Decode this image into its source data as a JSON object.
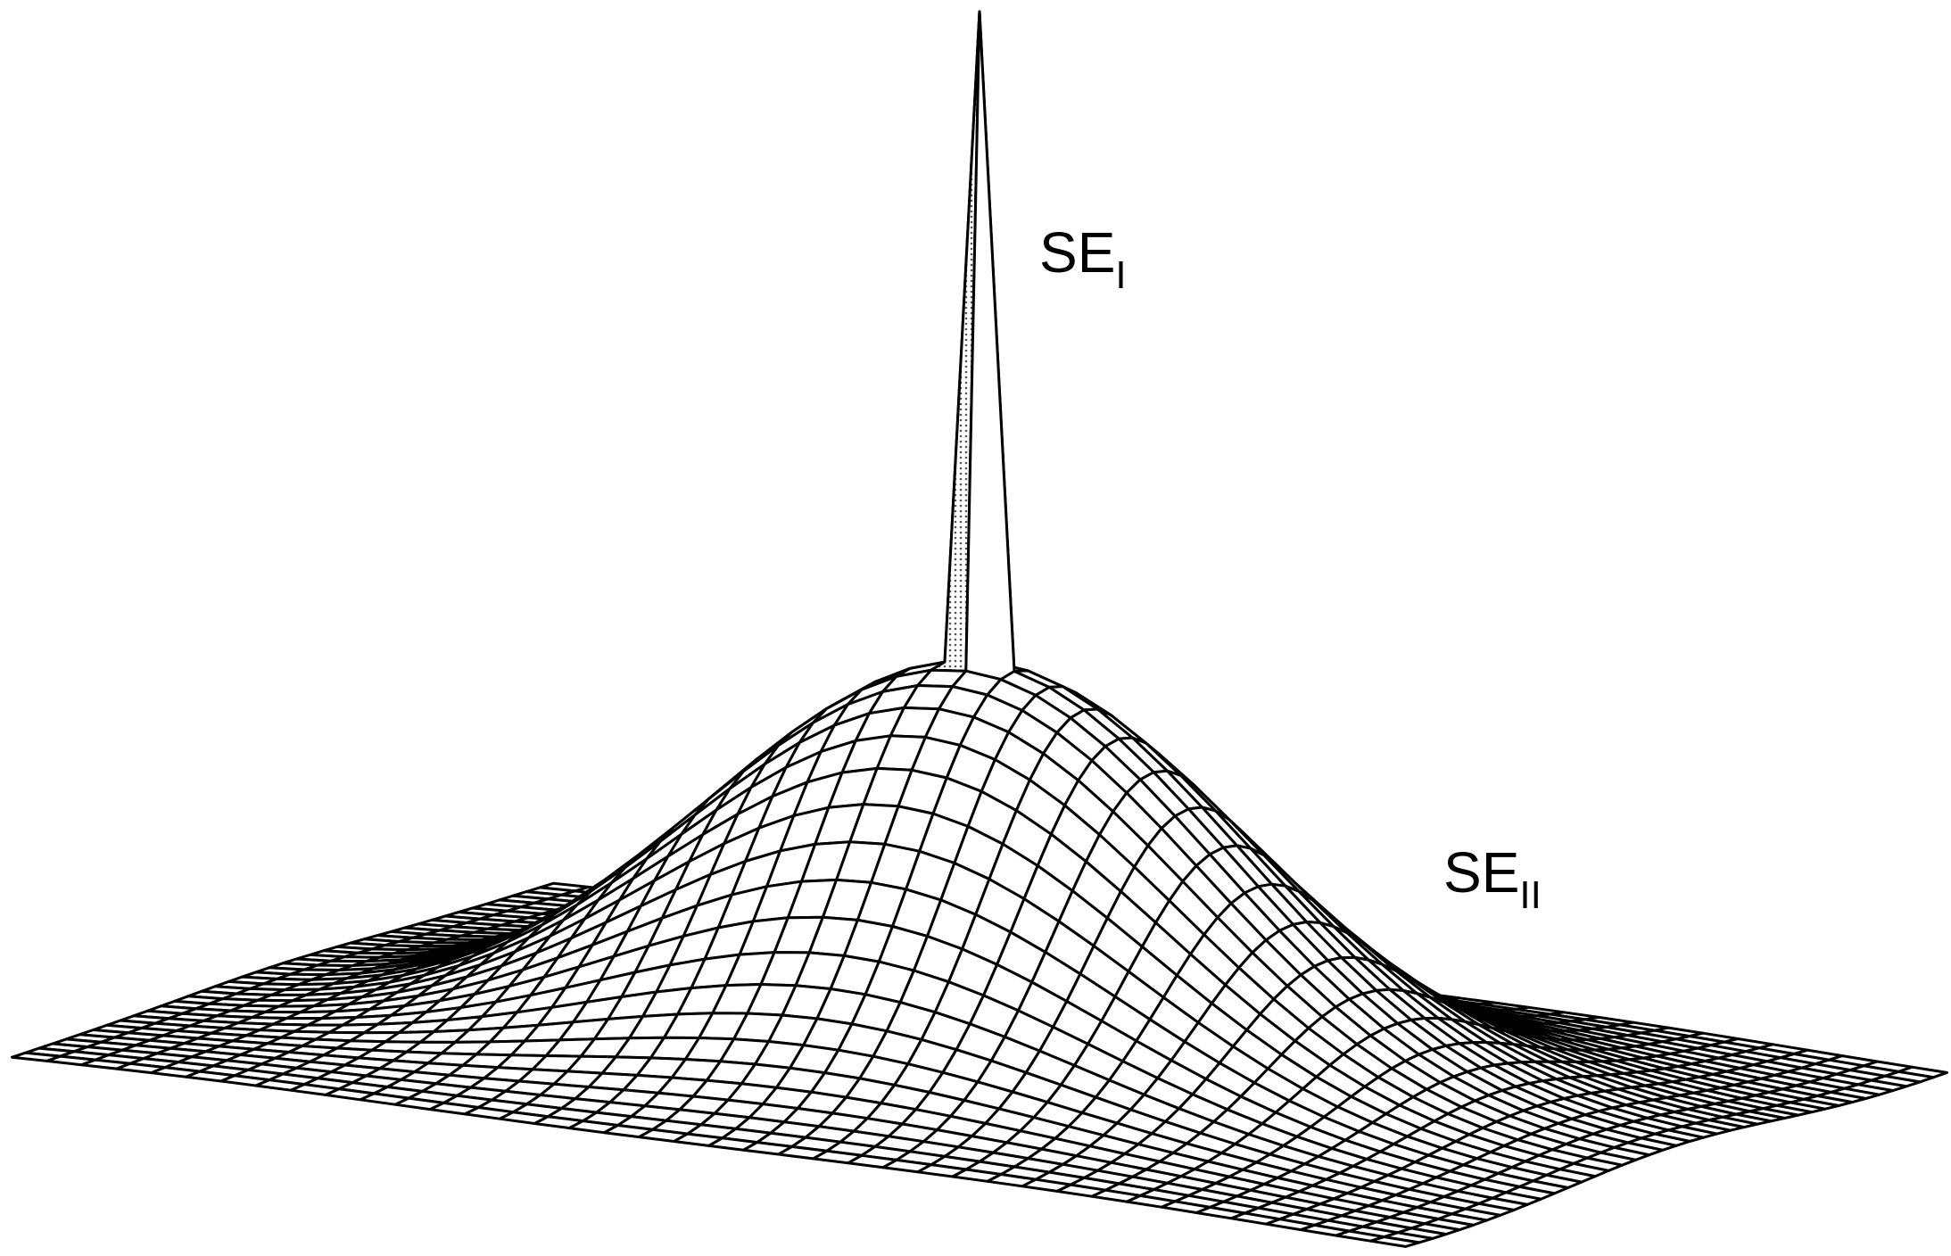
{
  "labels": [
    {
      "main": "SE",
      "sub": "I"
    },
    {
      "main": "SE",
      "sub": "II"
    }
  ]
}
